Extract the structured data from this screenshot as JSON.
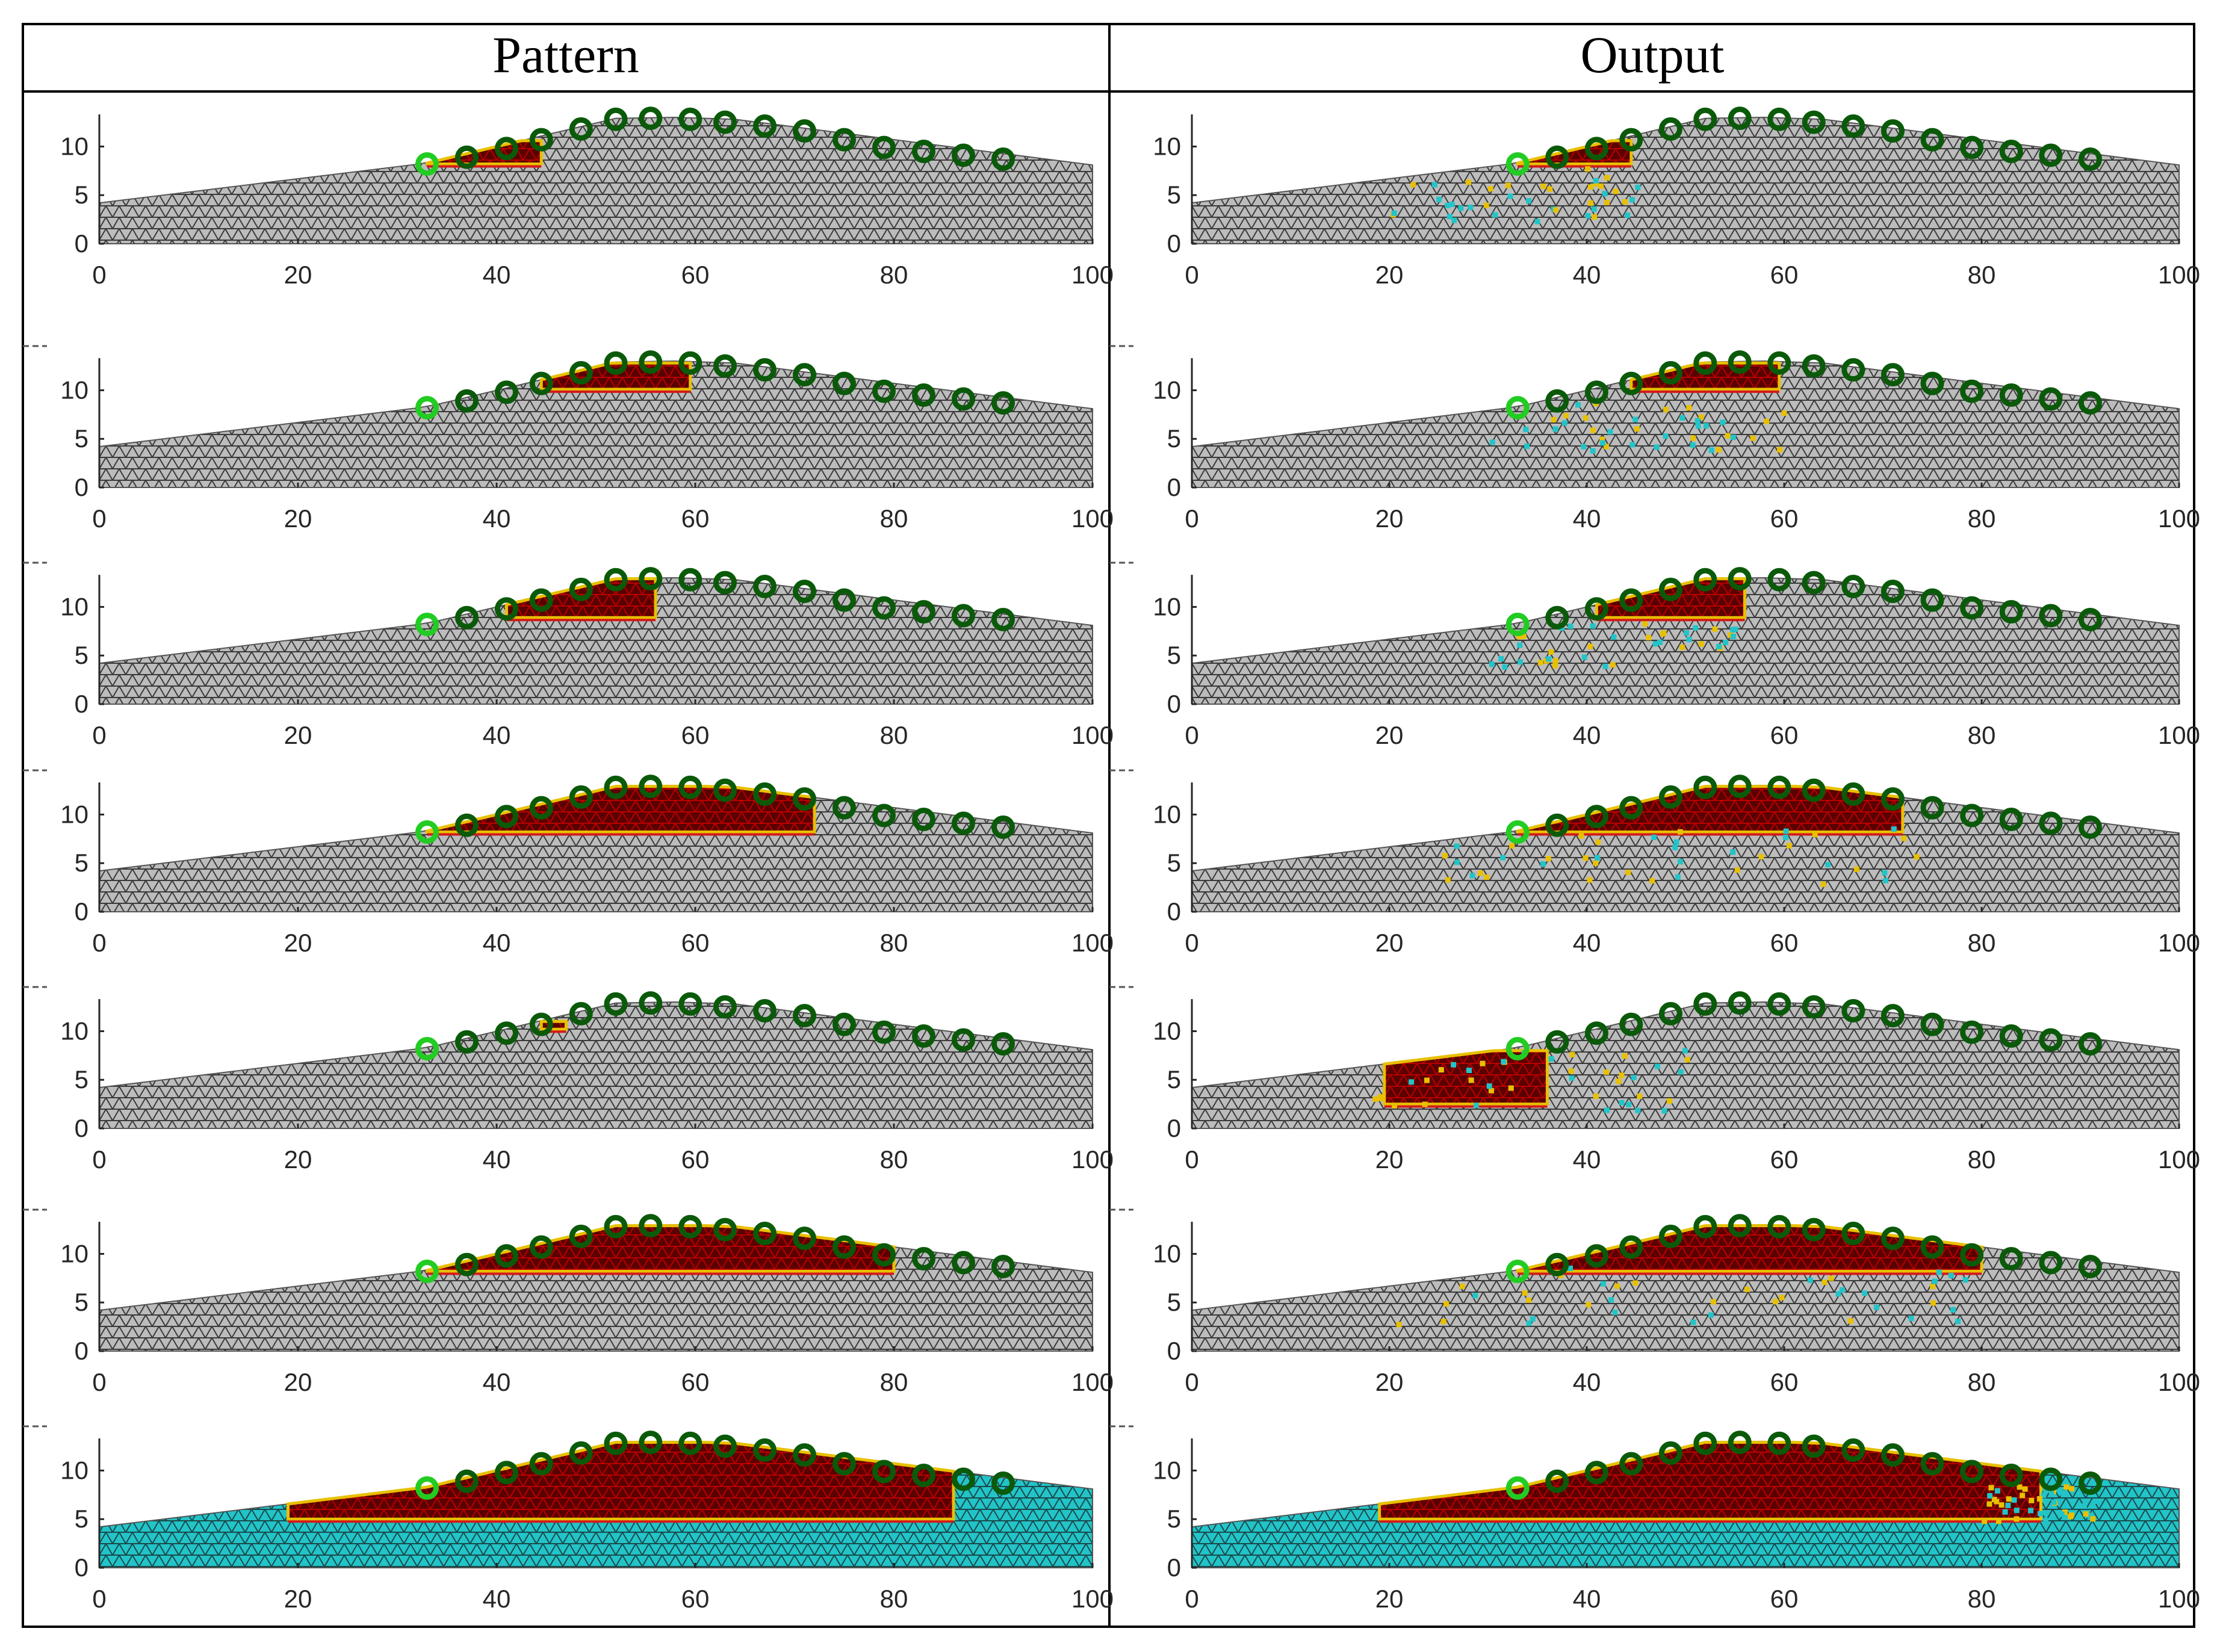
{
  "header": {
    "left": "Pattern",
    "right": "Output"
  },
  "chart_data": {
    "type": "scatter",
    "description_kind": "slope mesh with monitoring points",
    "xlim": [
      0,
      100
    ],
    "ylim": [
      0,
      13
    ],
    "x_ticks": [
      "0",
      "20",
      "40",
      "60",
      "80",
      "100"
    ],
    "y_ticks": [
      "0",
      "5",
      "10"
    ],
    "profile": [
      [
        0,
        4.2
      ],
      [
        33,
        8.3
      ],
      [
        52,
        12.9
      ],
      [
        58,
        13.0
      ],
      [
        64,
        12.8
      ],
      [
        100,
        8.1
      ]
    ],
    "monitor_points": [
      {
        "x": 33,
        "y": 8.2
      },
      {
        "x": 37,
        "y": 8.9
      },
      {
        "x": 41,
        "y": 9.8
      },
      {
        "x": 44.5,
        "y": 10.7
      },
      {
        "x": 48.5,
        "y": 11.8
      },
      {
        "x": 52,
        "y": 12.8
      },
      {
        "x": 55.5,
        "y": 12.9
      },
      {
        "x": 59.5,
        "y": 12.8
      },
      {
        "x": 63,
        "y": 12.5
      },
      {
        "x": 67,
        "y": 12.1
      },
      {
        "x": 71,
        "y": 11.6
      },
      {
        "x": 75,
        "y": 10.7
      },
      {
        "x": 79,
        "y": 9.9
      },
      {
        "x": 83,
        "y": 9.5
      },
      {
        "x": 87,
        "y": 9.1
      },
      {
        "x": 91,
        "y": 8.7
      }
    ],
    "colors": {
      "mesh": "#bcbcbc",
      "mesh_line": "#3a3a3a",
      "fail": "#5a0000",
      "edge": "#e8c000",
      "cyan": "#22c4c8",
      "point_first": "#22cc22",
      "point": "#0a5a0a"
    },
    "rows": [
      {
        "pattern": {
          "zone": [
            33,
            44.5,
            8.2,
            10.6
          ],
          "bg": "gray"
        },
        "output": {
          "zone": [
            33,
            44.5,
            8.2,
            10.6
          ],
          "bg": "gray",
          "scatter": [
            20,
            45,
            2,
            8
          ]
        }
      },
      {
        "pattern": {
          "zone": [
            44.5,
            59.5,
            10.1,
            12.8
          ],
          "bg": "gray"
        },
        "output": {
          "zone": [
            44.5,
            59.5,
            10.1,
            12.8
          ],
          "bg": "gray",
          "scatter": [
            30,
            60,
            4,
            9
          ]
        }
      },
      {
        "pattern": {
          "zone": [
            41,
            56,
            8.9,
            12.9
          ],
          "bg": "gray"
        },
        "output": {
          "zone": [
            41,
            56,
            8.9,
            12.9
          ],
          "bg": "gray",
          "scatter": [
            30,
            55,
            4,
            9
          ]
        }
      },
      {
        "pattern": {
          "zone": [
            33,
            72,
            8.2,
            12.9
          ],
          "bg": "gray"
        },
        "output": {
          "zone": [
            33,
            72,
            8.2,
            12.9
          ],
          "bg": "gray",
          "scatter": [
            25,
            75,
            3,
            9
          ]
        }
      },
      {
        "pattern": {
          "zone": [
            44.5,
            47,
            10.2,
            11.0
          ],
          "bg": "gray"
        },
        "output": {
          "zone": [
            19.5,
            36,
            2.5,
            8.0
          ],
          "bg": "gray",
          "scatter": [
            18,
            50,
            2,
            9
          ]
        }
      },
      {
        "pattern": {
          "zone": [
            33,
            80,
            8.2,
            12.9
          ],
          "bg": "gray"
        },
        "output": {
          "zone": [
            33,
            80,
            8.2,
            12.9
          ],
          "bg": "gray",
          "scatter": [
            20,
            82,
            3,
            9
          ]
        }
      },
      {
        "pattern": {
          "zone": [
            19,
            86,
            5.0,
            12.9
          ],
          "bg": "cyan"
        },
        "output": {
          "zone": [
            19,
            86,
            5.0,
            12.9
          ],
          "bg": "cyan",
          "scatter": [
            80,
            92,
            5,
            9
          ]
        }
      }
    ]
  }
}
